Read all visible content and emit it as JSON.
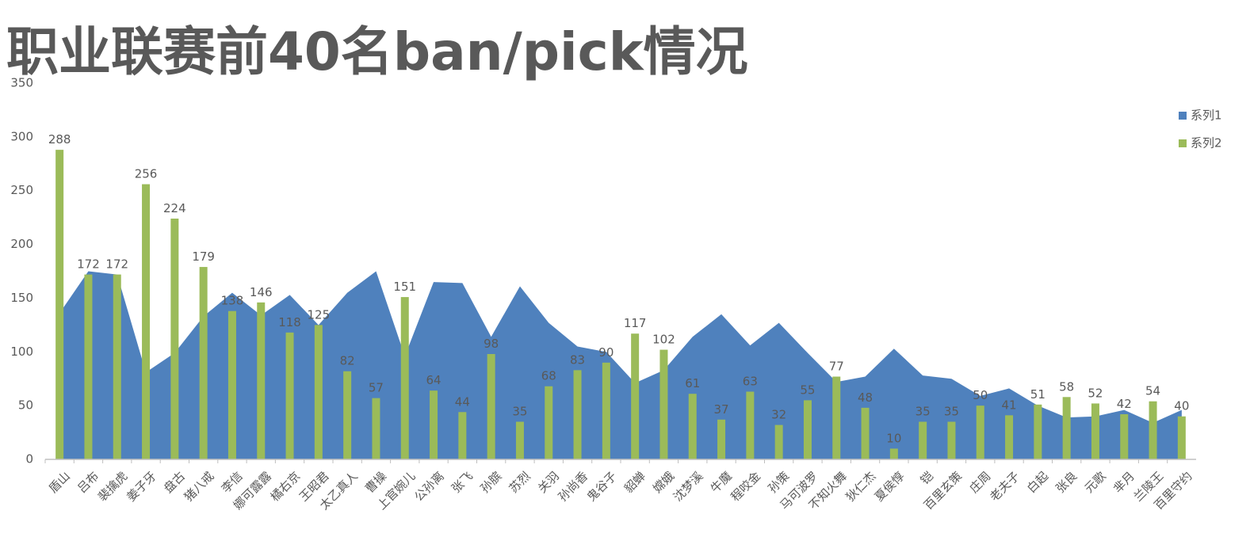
{
  "chart_data": {
    "type": "area-bar",
    "title": "职业联赛前40名ban/pick情况",
    "categories": [
      "盾山",
      "吕布",
      "裴擒虎",
      "姜子牙",
      "盘古",
      "猪八戒",
      "李信",
      "娜可露露",
      "橘右京",
      "王昭君",
      "太乙真人",
      "曹操",
      "上官婉儿",
      "公孙离",
      "张飞",
      "孙膑",
      "苏烈",
      "关羽",
      "孙尚香",
      "鬼谷子",
      "貂蝉",
      "嫦娥",
      "沈梦溪",
      "牛魔",
      "程咬金",
      "孙策",
      "马可波罗",
      "不知火舞",
      "狄仁杰",
      "夏侯惇",
      "铠",
      "百里玄策",
      "庄周",
      "老夫子",
      "白起",
      "张良",
      "元歌",
      "芈月",
      "兰陵王",
      "百里守约"
    ],
    "series": [
      {
        "name": "系列1",
        "color": "#4f81bd",
        "values": [
          136,
          175,
          172,
          81,
          99,
          133,
          155,
          134,
          153,
          125,
          155,
          175,
          96,
          165,
          164,
          114,
          161,
          127,
          105,
          100,
          71,
          83,
          114,
          135,
          106,
          127,
          99,
          72,
          77,
          103,
          78,
          75,
          59,
          66,
          50,
          39,
          40,
          46,
          34,
          46
        ]
      },
      {
        "name": "系列2",
        "color": "#9bbb59",
        "values": [
          288,
          172,
          172,
          256,
          224,
          179,
          138,
          146,
          118,
          125,
          82,
          57,
          151,
          64,
          44,
          98,
          35,
          68,
          83,
          90,
          117,
          102,
          61,
          37,
          63,
          32,
          55,
          77,
          48,
          10,
          35,
          35,
          50,
          41,
          51,
          58,
          52,
          42,
          54,
          40
        ]
      }
    ],
    "ylim": [
      0,
      350
    ],
    "yticks": [
      0,
      50,
      100,
      150,
      200,
      250,
      300,
      350
    ],
    "grid": false,
    "legend": "right"
  }
}
